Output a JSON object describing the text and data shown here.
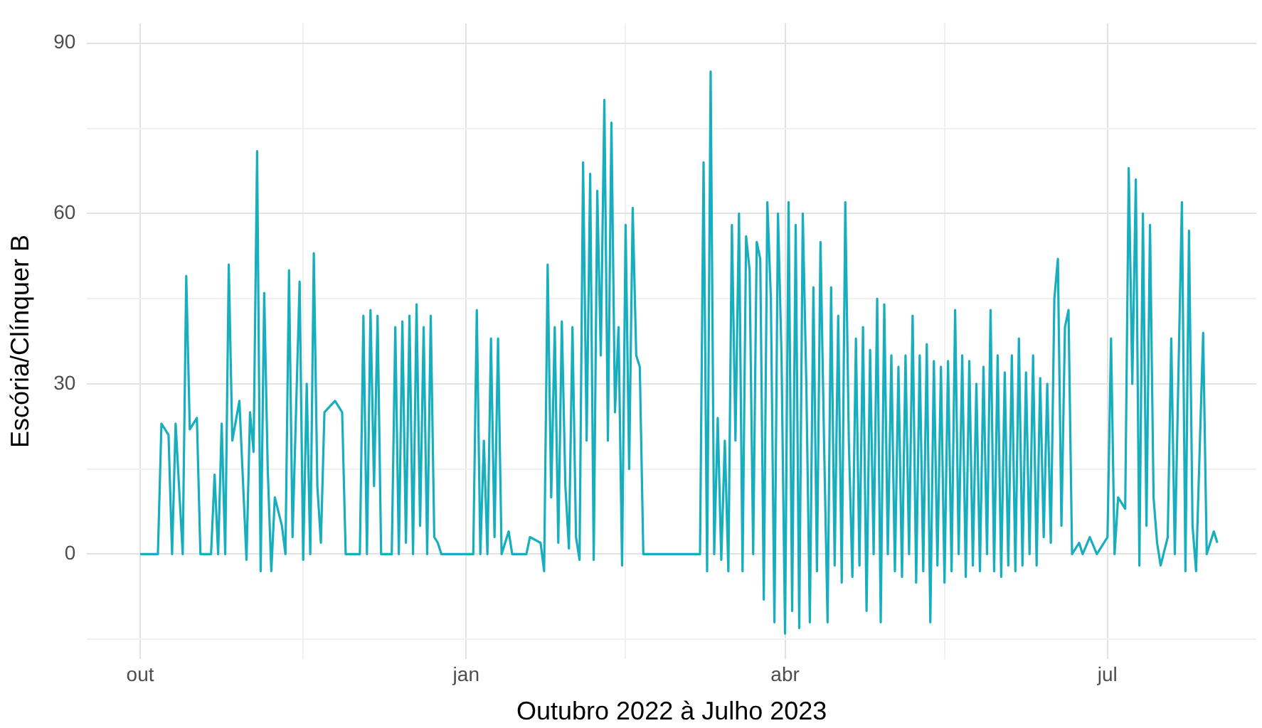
{
  "chart_data": {
    "type": "line",
    "xlabel": "Outubro 2022 à Julho 2023",
    "ylabel": "Escória/Clínquer B",
    "xlim": [
      "2022-09-16",
      "2023-08-12"
    ],
    "xticks": [
      {
        "value": "2022-10-01",
        "label": "out"
      },
      {
        "value": "2022-11-16",
        "label": null
      },
      {
        "value": "2023-01-01",
        "label": "jan"
      },
      {
        "value": "2023-02-15",
        "label": null
      },
      {
        "value": "2023-04-01",
        "label": "abr"
      },
      {
        "value": "2023-05-16",
        "label": null
      },
      {
        "value": "2023-07-01",
        "label": "jul"
      }
    ],
    "ylim": [
      -18.5,
      93.5
    ],
    "yticks": [
      {
        "value": -15,
        "label": null
      },
      0,
      {
        "value": 15,
        "label": null
      },
      30,
      {
        "value": 45,
        "label": null
      },
      60,
      {
        "value": 75,
        "label": null
      },
      90
    ],
    "grid": true,
    "legend": false,
    "marker": "none",
    "line_style": "solid",
    "series": [
      {
        "color": "#17aebd",
        "x": [
          "2022-10-01",
          "2022-10-06",
          "2022-10-07",
          "2022-10-09",
          "2022-10-10",
          "2022-10-11",
          "2022-10-13",
          "2022-10-14",
          "2022-10-15",
          "2022-10-17",
          "2022-10-18",
          "2022-10-21",
          "2022-10-22",
          "2022-10-23",
          "2022-10-24",
          "2022-10-25",
          "2022-10-26",
          "2022-10-27",
          "2022-10-29",
          "2022-10-31",
          "2022-11-01",
          "2022-11-02",
          "2022-11-03",
          "2022-11-04",
          "2022-11-05",
          "2022-11-06",
          "2022-11-07",
          "2022-11-08",
          "2022-11-10",
          "2022-11-11",
          "2022-11-12",
          "2022-11-13",
          "2022-11-15",
          "2022-11-16",
          "2022-11-17",
          "2022-11-18",
          "2022-11-19",
          "2022-11-20",
          "2022-11-21",
          "2022-11-22",
          "2022-11-25",
          "2022-11-27",
          "2022-11-28",
          "2022-12-02",
          "2022-12-03",
          "2022-12-04",
          "2022-12-05",
          "2022-12-06",
          "2022-12-07",
          "2022-12-08",
          "2022-12-11",
          "2022-12-12",
          "2022-12-13",
          "2022-12-14",
          "2022-12-15",
          "2022-12-16",
          "2022-12-17",
          "2022-12-18",
          "2022-12-19",
          "2022-12-20",
          "2022-12-21",
          "2022-12-22",
          "2022-12-23",
          "2022-12-24",
          "2022-12-25",
          "2023-01-03",
          "2023-01-04",
          "2023-01-05",
          "2023-01-06",
          "2023-01-07",
          "2023-01-08",
          "2023-01-09",
          "2023-01-10",
          "2023-01-11",
          "2023-01-13",
          "2023-01-14",
          "2023-01-18",
          "2023-01-19",
          "2023-01-22",
          "2023-01-23",
          "2023-01-24",
          "2023-01-25",
          "2023-01-26",
          "2023-01-27",
          "2023-01-28",
          "2023-01-29",
          "2023-01-30",
          "2023-01-31",
          "2023-02-01",
          "2023-02-02",
          "2023-02-03",
          "2023-02-04",
          "2023-02-05",
          "2023-02-06",
          "2023-02-07",
          "2023-02-08",
          "2023-02-09",
          "2023-02-10",
          "2023-02-11",
          "2023-02-12",
          "2023-02-13",
          "2023-02-14",
          "2023-02-15",
          "2023-02-16",
          "2023-02-17",
          "2023-02-18",
          "2023-02-19",
          "2023-02-20",
          "2023-03-08",
          "2023-03-09",
          "2023-03-10",
          "2023-03-11",
          "2023-03-12",
          "2023-03-13",
          "2023-03-14",
          "2023-03-15",
          "2023-03-16",
          "2023-03-17",
          "2023-03-18",
          "2023-03-19",
          "2023-03-20",
          "2023-03-21",
          "2023-03-22",
          "2023-03-23",
          "2023-03-24",
          "2023-03-25",
          "2023-03-26",
          "2023-03-27",
          "2023-03-28",
          "2023-03-29",
          "2023-03-30",
          "2023-03-31",
          "2023-04-01",
          "2023-04-02",
          "2023-04-03",
          "2023-04-04",
          "2023-04-05",
          "2023-04-06",
          "2023-04-07",
          "2023-04-08",
          "2023-04-09",
          "2023-04-10",
          "2023-04-11",
          "2023-04-12",
          "2023-04-13",
          "2023-04-14",
          "2023-04-15",
          "2023-04-16",
          "2023-04-17",
          "2023-04-18",
          "2023-04-19",
          "2023-04-20",
          "2023-04-21",
          "2023-04-22",
          "2023-04-23",
          "2023-04-24",
          "2023-04-25",
          "2023-04-26",
          "2023-04-27",
          "2023-04-28",
          "2023-04-29",
          "2023-04-30",
          "2023-05-01",
          "2023-05-02",
          "2023-05-03",
          "2023-05-04",
          "2023-05-05",
          "2023-05-06",
          "2023-05-07",
          "2023-05-08",
          "2023-05-09",
          "2023-05-10",
          "2023-05-11",
          "2023-05-12",
          "2023-05-13",
          "2023-05-14",
          "2023-05-15",
          "2023-05-16",
          "2023-05-17",
          "2023-05-18",
          "2023-05-19",
          "2023-05-20",
          "2023-05-21",
          "2023-05-22",
          "2023-05-23",
          "2023-05-24",
          "2023-05-25",
          "2023-05-26",
          "2023-05-27",
          "2023-05-28",
          "2023-05-29",
          "2023-05-30",
          "2023-05-31",
          "2023-06-01",
          "2023-06-02",
          "2023-06-03",
          "2023-06-04",
          "2023-06-05",
          "2023-06-06",
          "2023-06-07",
          "2023-06-08",
          "2023-06-09",
          "2023-06-10",
          "2023-06-11",
          "2023-06-12",
          "2023-06-13",
          "2023-06-14",
          "2023-06-15",
          "2023-06-16",
          "2023-06-17",
          "2023-06-18",
          "2023-06-19",
          "2023-06-20",
          "2023-06-21",
          "2023-06-23",
          "2023-06-24",
          "2023-06-26",
          "2023-06-28",
          "2023-07-01",
          "2023-07-02",
          "2023-07-03",
          "2023-07-04",
          "2023-07-06",
          "2023-07-07",
          "2023-07-08",
          "2023-07-09",
          "2023-07-10",
          "2023-07-11",
          "2023-07-12",
          "2023-07-13",
          "2023-07-14",
          "2023-07-15",
          "2023-07-16",
          "2023-07-18",
          "2023-07-19",
          "2023-07-20",
          "2023-07-22",
          "2023-07-23",
          "2023-07-24",
          "2023-07-25",
          "2023-07-26",
          "2023-07-28",
          "2023-07-29",
          "2023-07-31",
          "2023-08-01"
        ],
        "values": [
          0,
          0,
          23,
          21,
          0,
          23,
          0,
          49,
          22,
          24,
          0,
          0,
          14,
          0,
          23,
          0,
          51,
          20,
          27,
          -1,
          25,
          18,
          71,
          -3,
          46,
          15,
          -3,
          10,
          5,
          0,
          50,
          3,
          48,
          -1,
          30,
          0,
          53,
          12,
          2,
          25,
          27,
          25,
          0,
          0,
          42,
          0,
          43,
          12,
          42,
          0,
          0,
          40,
          0,
          41,
          2,
          42,
          0,
          44,
          5,
          40,
          0,
          42,
          3,
          2,
          0,
          0,
          43,
          0,
          20,
          0,
          38,
          3,
          38,
          0,
          4,
          0,
          0,
          3,
          2,
          -3,
          51,
          10,
          40,
          2,
          41,
          12,
          1,
          40,
          3,
          -1,
          69,
          20,
          67,
          -1,
          64,
          35,
          80,
          20,
          76,
          25,
          40,
          -2,
          58,
          15,
          61,
          35,
          33,
          0,
          0,
          69,
          -3,
          85,
          0,
          24,
          -1,
          20,
          -3,
          58,
          20,
          60,
          -3,
          56,
          50,
          0,
          55,
          52,
          -8,
          62,
          45,
          -12,
          60,
          35,
          -14,
          62,
          -10,
          58,
          -13,
          60,
          30,
          -12,
          47,
          -3,
          55,
          20,
          -12,
          47,
          -2,
          42,
          -5,
          62,
          20,
          -4,
          38,
          -2,
          40,
          -10,
          36,
          0,
          45,
          -12,
          44,
          0,
          35,
          -3,
          33,
          -4,
          35,
          0,
          42,
          -5,
          35,
          -3,
          37,
          -12,
          34,
          -2,
          33,
          -5,
          34,
          -3,
          43,
          0,
          35,
          -4,
          34,
          -2,
          30,
          -3,
          33,
          0,
          43,
          -3,
          35,
          -4,
          32,
          -2,
          35,
          -3,
          38,
          -2,
          32,
          0,
          35,
          -2,
          31,
          3,
          30,
          2,
          45,
          52,
          5,
          40,
          43,
          0,
          2,
          0,
          3,
          0,
          3,
          38,
          0,
          10,
          8,
          68,
          30,
          66,
          -2,
          60,
          5,
          58,
          10,
          2,
          -2,
          3,
          38,
          0,
          62,
          -3,
          57,
          5,
          -3,
          39,
          0,
          4,
          2
        ]
      }
    ]
  }
}
